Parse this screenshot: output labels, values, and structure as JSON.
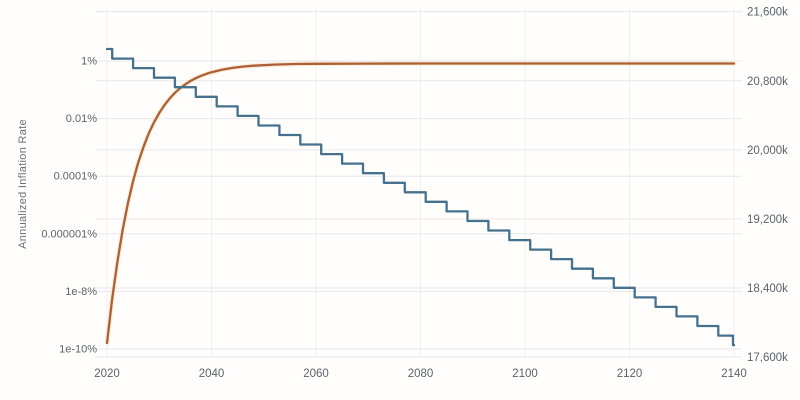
{
  "left_axis": {
    "title": "Annualized Inflation Rate",
    "scale": "log",
    "tick_labels": [
      "1%",
      "0.01%",
      "0.0001%",
      "0.000001%",
      "1e-8%",
      "1e-10%"
    ],
    "tick_values": [
      1,
      0.01,
      0.0001,
      1e-06,
      1e-08,
      1e-10
    ]
  },
  "right_axis": {
    "unit": "k",
    "tick_labels": [
      "21,600k",
      "20,800k",
      "20,000k",
      "19,200k",
      "18,400k",
      "17,600k"
    ],
    "tick_values": [
      21600,
      20800,
      20000,
      19200,
      18400,
      17600
    ]
  },
  "x_axis": {
    "tick_labels": [
      "2020",
      "2040",
      "2060",
      "2080",
      "2100",
      "2120",
      "2140"
    ],
    "tick_values": [
      2020,
      2040,
      2060,
      2080,
      2100,
      2120,
      2140
    ]
  },
  "colors": {
    "inflation_line": "#46718e",
    "supply_line": "#ae5f36",
    "supply_halo": "#f6e3c4",
    "grid_horizontal": "#e7e7ed",
    "grid_vertical": "#f4eef0",
    "tick_text": "#5b6269",
    "axis_title_text": "#6a727b"
  },
  "chart_data": {
    "type": "line",
    "title": "",
    "grid": true,
    "legend": false,
    "x_unit": "year",
    "x_range": [
      2018,
      2141.5
    ],
    "left_axis_scale": "log",
    "left_axis_range_pct": [
      1e-10,
      5
    ],
    "right_axis_range_k": [
      17550,
      21650
    ],
    "series": [
      {
        "name": "annualized-inflation-rate",
        "axis": "left",
        "unit": "%",
        "shape": "step-halving",
        "color": "#46718e",
        "initial_value_pct": 2.6,
        "halving_years": [
          2021,
          2025,
          2029,
          2033,
          2037,
          2041,
          2045,
          2049,
          2053,
          2057,
          2061,
          2065,
          2069,
          2073,
          2077,
          2081,
          2085,
          2089,
          2093,
          2097,
          2101,
          2105,
          2109,
          2113,
          2117,
          2121,
          2125,
          2129,
          2133,
          2137,
          2139.8
        ],
        "values_pct": [
          2.6,
          1.21,
          0.565,
          0.263,
          0.123,
          0.0571,
          0.0266,
          0.0124,
          0.00578,
          0.00269,
          0.00126,
          0.000585,
          0.000273,
          0.000127,
          5.92e-05,
          2.76e-05,
          1.29e-05,
          5.99e-06,
          2.79e-06,
          1.3e-06,
          6.06e-07,
          2.82e-07,
          1.32e-07,
          6.13e-08,
          2.86e-08,
          1.33e-08,
          6.2e-09,
          2.89e-09,
          1.35e-09,
          6.28e-10,
          2.93e-10,
          1.37e-10
        ],
        "end_year": 2140
      },
      {
        "name": "total-supply-thousands",
        "axis": "right",
        "unit": "k",
        "shape": "smooth",
        "color": "#ae5f36",
        "asymptote_k": 21000,
        "points": [
          [
            2020,
            17762
          ],
          [
            2021,
            18277
          ],
          [
            2022,
            18710
          ],
          [
            2023,
            19075
          ],
          [
            2024,
            19381
          ],
          [
            2025,
            19639
          ],
          [
            2026,
            19855
          ],
          [
            2027,
            20037
          ],
          [
            2028,
            20191
          ],
          [
            2029,
            20319
          ],
          [
            2030,
            20428
          ],
          [
            2031,
            20519
          ],
          [
            2032,
            20595
          ],
          [
            2033,
            20660
          ],
          [
            2034,
            20714
          ],
          [
            2035,
            20759
          ],
          [
            2036,
            20798
          ],
          [
            2037,
            20830
          ],
          [
            2038,
            20857
          ],
          [
            2039,
            20880
          ],
          [
            2040,
            20899
          ],
          [
            2042,
            20928
          ],
          [
            2044,
            20949
          ],
          [
            2046,
            20964
          ],
          [
            2048,
            20975
          ],
          [
            2052,
            20987
          ],
          [
            2056,
            20994
          ],
          [
            2060,
            20997
          ],
          [
            2070,
            20999
          ],
          [
            2080,
            21000
          ],
          [
            2100,
            21000
          ],
          [
            2120,
            21000
          ],
          [
            2140,
            21000
          ]
        ]
      }
    ]
  }
}
